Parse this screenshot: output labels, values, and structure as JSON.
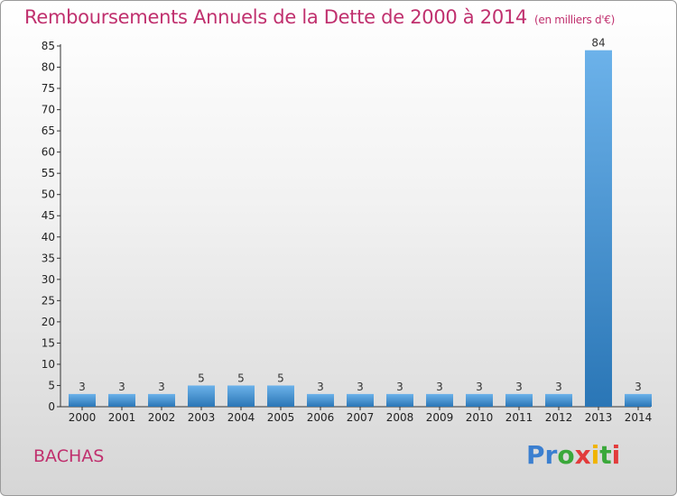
{
  "title": "Remboursements Annuels de la Dette de 2000 à 2014",
  "unit": "(en milliers d'€)",
  "commune": "BACHAS",
  "brand": {
    "text": "Proxiti",
    "letters": [
      {
        "ch": "P",
        "color": "#3b7fd0"
      },
      {
        "ch": "r",
        "color": "#3b7fd0"
      },
      {
        "ch": "o",
        "color": "#3aa83a"
      },
      {
        "ch": "x",
        "color": "#e23b3b"
      },
      {
        "ch": "i",
        "color": "#f0b400"
      },
      {
        "ch": "t",
        "color": "#3aa83a"
      },
      {
        "ch": "i",
        "color": "#e23b3b"
      }
    ]
  },
  "colors": {
    "title": "#c0306e",
    "bar_light": "#6cb2ea",
    "bar_dark": "#2a76b6"
  },
  "chart_data": {
    "type": "bar",
    "categories": [
      "2000",
      "2001",
      "2002",
      "2003",
      "2004",
      "2005",
      "2006",
      "2007",
      "2008",
      "2009",
      "2010",
      "2011",
      "2012",
      "2013",
      "2014"
    ],
    "values": [
      3,
      3,
      3,
      5,
      5,
      5,
      3,
      3,
      3,
      3,
      3,
      3,
      3,
      84,
      3
    ],
    "yticks": [
      0,
      5,
      10,
      15,
      20,
      25,
      30,
      35,
      40,
      45,
      50,
      55,
      60,
      65,
      70,
      75,
      80,
      85
    ],
    "ylim": [
      0,
      85
    ],
    "grid": false,
    "legend": "none"
  }
}
